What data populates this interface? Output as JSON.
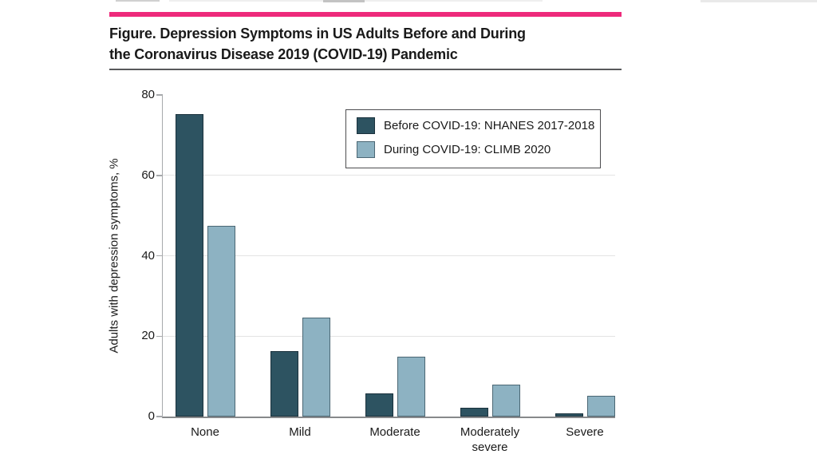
{
  "figure": {
    "title_line1": "Figure. Depression Symptoms in US Adults Before and During",
    "title_line2": "the Coronavirus Disease 2019 (COVID-19) Pandemic"
  },
  "colors": {
    "accent_rule": "#ee2a7b",
    "title_underline": "#58595b",
    "axis_line": "#a7a9ac",
    "baseline": "#87898b",
    "gridline": "#e4e4e4"
  },
  "chart_data": {
    "type": "bar",
    "title": "Depression Symptoms in US Adults Before and During the COVID-19 Pandemic",
    "categories": [
      "None",
      "Mild",
      "Moderate",
      "Moderately severe",
      "Severe"
    ],
    "series": [
      {
        "name": "Before COVID-19: NHANES 2017-2018",
        "color": "#2d5361",
        "border_color": "#1b323d",
        "values": [
          75.3,
          16.2,
          5.7,
          2.1,
          0.7
        ]
      },
      {
        "name": "During COVID-19: CLIMB 2020",
        "color": "#8db2c2",
        "border_color": "#4b6774",
        "values": [
          47.5,
          24.6,
          14.8,
          7.9,
          5.1
        ]
      }
    ],
    "xlabel": "",
    "ylabel": "Adults with depression symptoms, %",
    "yticks": [
      0,
      20,
      40,
      60,
      80
    ],
    "ylim": [
      0,
      80
    ],
    "grid": true,
    "legend_position": "top-right"
  }
}
